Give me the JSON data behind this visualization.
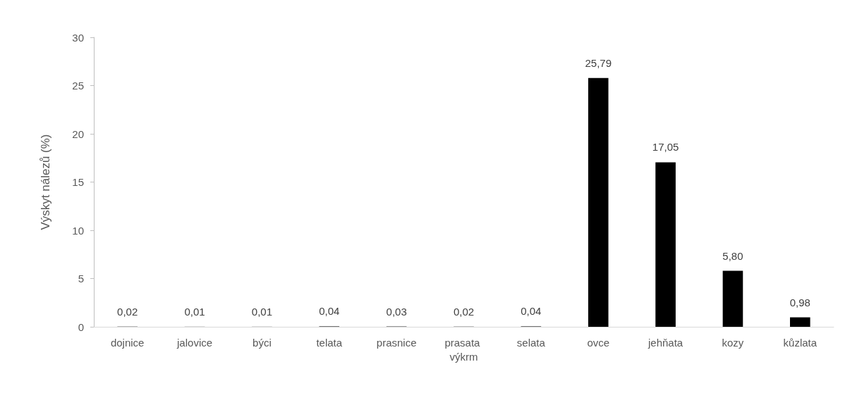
{
  "chart_data": {
    "type": "bar",
    "ylabel": "Výskyt nálezů (%)",
    "categories": [
      "dojnice",
      "jalovice",
      "býci",
      "telata",
      "prasnice",
      "prasata výkrm",
      "selata",
      "ovce",
      "jehňata",
      "kozy",
      "kůzlata"
    ],
    "values": [
      0.02,
      0.01,
      0.01,
      0.04,
      0.03,
      0.02,
      0.04,
      25.79,
      17.05,
      5.8,
      0.98
    ],
    "value_labels": [
      "0,02",
      "0,01",
      "0,01",
      "0,04",
      "0,03",
      "0,02",
      "0,04",
      "25,79",
      "17,05",
      "5,80",
      "0,98"
    ],
    "color": "#000000",
    "ylim": [
      0,
      30
    ],
    "yticks": [
      0,
      5,
      10,
      15,
      20,
      25,
      30
    ],
    "grid": false
  }
}
